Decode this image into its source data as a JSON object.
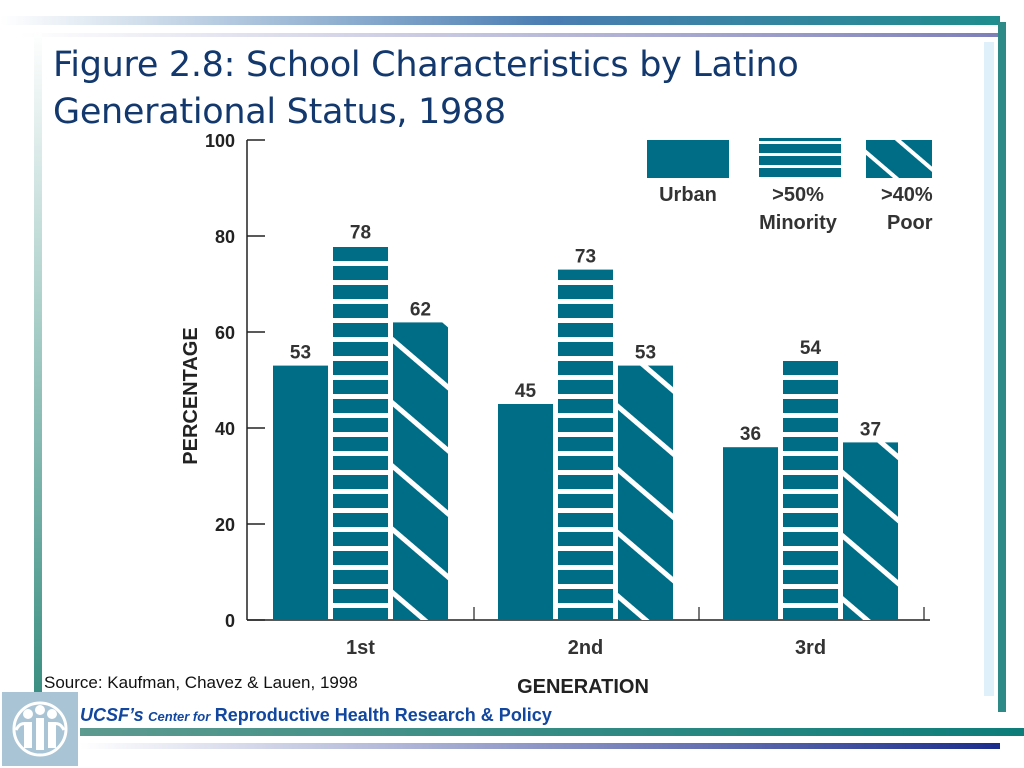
{
  "slide": {
    "title_line1": "Figure 2.8: School Characteristics by Latino",
    "title_line2": "Generational Status, 1988",
    "source": "Source: Kaufman, Chavez & Lauen, 1998",
    "footer": {
      "part1": "UCSF’s",
      "part2": "Center for",
      "part3": "Reproductive Health Research & Policy"
    },
    "logo_icon": "people-figures-logo-icon",
    "colors": {
      "accent": "#006d87",
      "title": "#12386d",
      "footer": "#1247a0"
    }
  },
  "chart_data": {
    "type": "bar",
    "categories": [
      "1st",
      "2nd",
      "3rd"
    ],
    "series": [
      {
        "name": "Urban",
        "values": [
          53,
          45,
          36
        ],
        "pattern": "solid"
      },
      {
        "name": ">50% Minority",
        "values": [
          78,
          73,
          54
        ],
        "pattern": "horizontal-stripes"
      },
      {
        "name": ">40% Poor",
        "values": [
          62,
          53,
          37
        ],
        "pattern": "diagonal-stripes"
      }
    ],
    "legend_labels": [
      {
        "line1": "Urban",
        "line2": ""
      },
      {
        "line1": ">50%",
        "line2": "Minority"
      },
      {
        "line1": ">40%",
        "line2": "Poor"
      }
    ],
    "xlabel": "GENERATION",
    "ylabel": "PERCENTAGE",
    "ylim": [
      0,
      100
    ],
    "yticks": [
      "0",
      "20",
      "40",
      "60",
      "80",
      "100"
    ],
    "legend_position": "top-right",
    "grid": false,
    "bar_color": "#006d87"
  }
}
